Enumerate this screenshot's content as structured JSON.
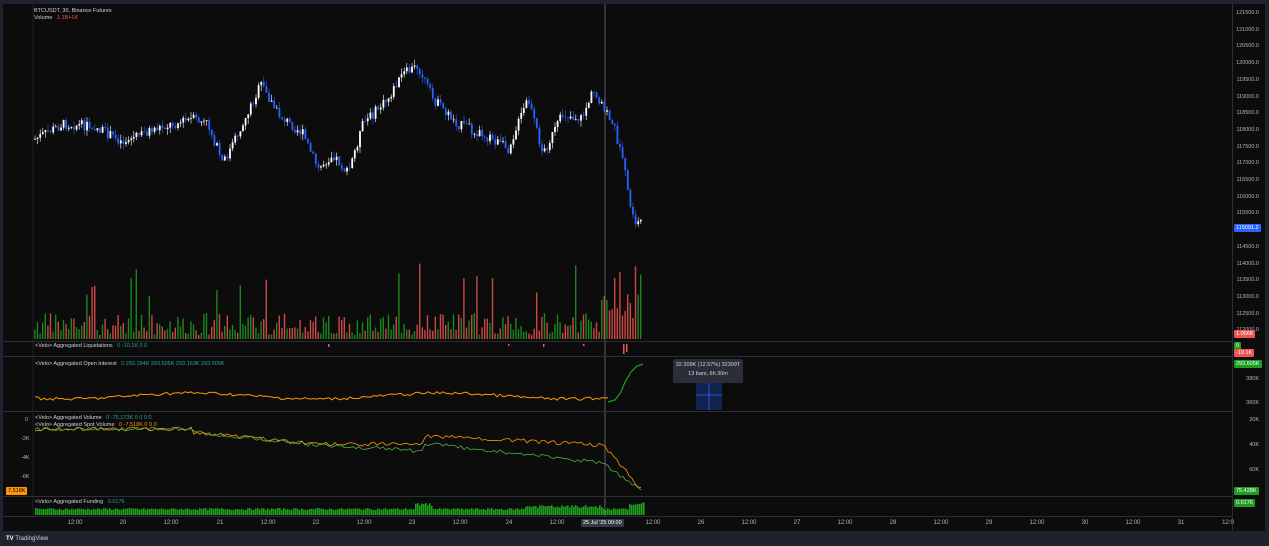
{
  "header": {
    "symbol_line": "BTCUSDT, 30, Binance Futures",
    "volume_label": "Volume",
    "volume_value": "1.1B+1K"
  },
  "indicators": {
    "liquidations": {
      "title": "<Velo> Aggregated Liquidations",
      "values": "0  -10.1K  0  0"
    },
    "open_interest": {
      "title": "<Velo> Aggregated Open Interest",
      "values": "0  293.184K  293.605K  293.163K  293.605K"
    },
    "agg_volume": {
      "title": "<Velo> Aggregated Volume",
      "values": "0  -75.173K  0  0  0  0"
    },
    "spot_volume": {
      "title": "<Velo> Aggregated Spot Volume",
      "values": "0  -7.518K  0  0  0"
    },
    "funding": {
      "title": "<Velo> Aggregated Funding",
      "values": "0.0176"
    }
  },
  "price_axis": [
    "121500.0",
    "121000.0",
    "120500.0",
    "120000.0",
    "119500.0",
    "119000.0",
    "118500.0",
    "118000.0",
    "117500.0",
    "117000.0",
    "116500.0",
    "116000.0",
    "115500.0",
    "115000.0",
    "114500.0",
    "114000.0",
    "113500.0",
    "113000.0",
    "112500.0",
    "112000.0"
  ],
  "price_badge": "115091.2",
  "volume_badge": "1.056K",
  "liq_badges": [
    "0",
    "-10.1K"
  ],
  "oi_axis": [
    "293.605K",
    "380K",
    "360K"
  ],
  "vol_axis_right": [
    "20K",
    "40K",
    "60K"
  ],
  "vol_axis_left": [
    "0",
    "-2K",
    "-4K",
    "-6K"
  ],
  "vol_badge_right": "75.428K",
  "vol_badge_left": "7.518K",
  "funding_badge": "0.0176",
  "time_axis": [
    "12:00",
    "20",
    "12:00",
    "21",
    "12:00",
    "22",
    "12:00",
    "23",
    "12:00",
    "24",
    "12:00",
    "12:00",
    "26",
    "12:00",
    "27",
    "12:00",
    "28",
    "12:00",
    "29",
    "12:00",
    "30",
    "12:00",
    "31",
    "12:0"
  ],
  "time_cursor": "25 Jul '25   00:00",
  "tooltip": {
    "line1": "32.309K (12.57%) 32309T",
    "line2": "13 bars, 6h 30m"
  },
  "footer": {
    "brand": "TradingView"
  },
  "colors": {
    "bg": "#0c0c0c",
    "up": "#26a69a",
    "down": "#ef5350",
    "candle": "#ffffff",
    "candle_down": "#2962ff",
    "oi": "#ff9800",
    "funding": "#1e9e1e",
    "blue_badge": "#2962ff"
  }
}
